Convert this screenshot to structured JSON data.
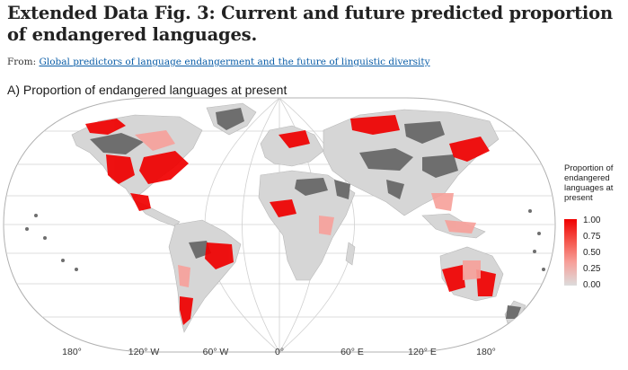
{
  "figure": {
    "title": "Extended Data Fig. 3: Current and future predicted proportion of endangered languages.",
    "from_prefix": "From:",
    "from_link": "Global predictors of language endangerment and the future of linguistic diversity",
    "panel_title": "A) Proportion of endangered languages at present"
  },
  "legend": {
    "title": "Proportion of endangered languages at present",
    "ticks": [
      "1.00",
      "0.75",
      "0.50",
      "0.25",
      "0.00"
    ],
    "colors": {
      "high": "#f00000",
      "mid": "#f7a09a",
      "low": "#dcdcdc",
      "no_data": "#6e6e6e"
    }
  },
  "longitude_labels": [
    "180°",
    "120° W",
    "60° W",
    "0°",
    "60° E",
    "120° E",
    "180°"
  ],
  "colors": {
    "land_base": "#d6d6d6",
    "no_data_grey": "#6e6e6e",
    "graticule": "#d0d0d0",
    "outline": "#b0b0b0"
  }
}
